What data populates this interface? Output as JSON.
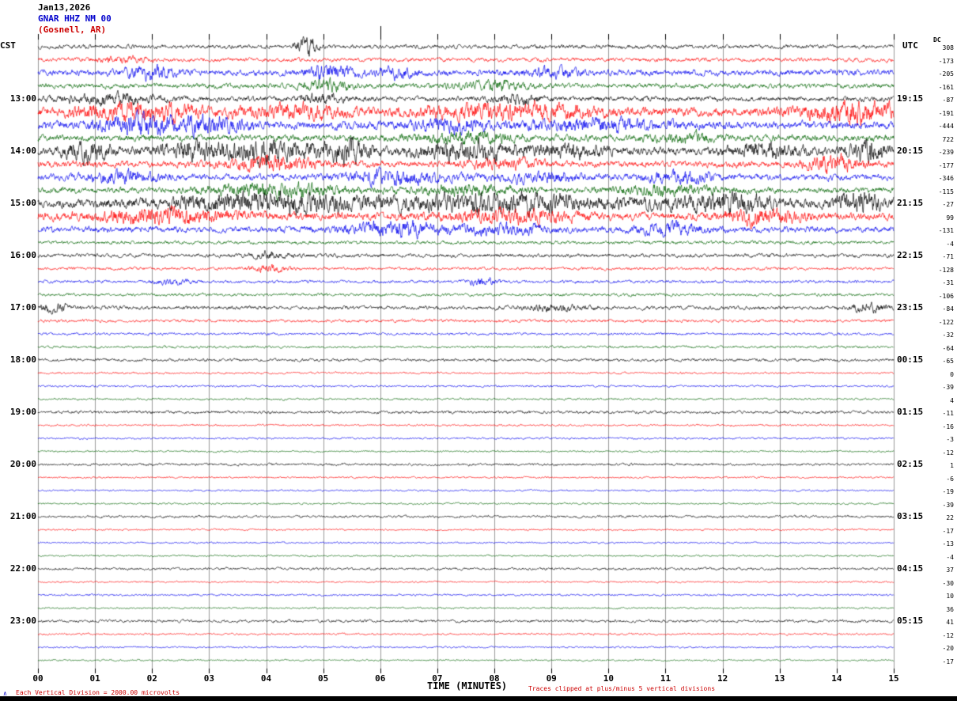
{
  "header": {
    "date": "Jan13,2026",
    "station": "GNAR HHZ NM 00",
    "location": "(Gosnell, AR)"
  },
  "axis": {
    "left_tz": "CST",
    "right_tz": "UTC",
    "dc_header": "DC",
    "x_label": "TIME (MINUTES)",
    "x_ticks": [
      "00",
      "01",
      "02",
      "03",
      "04",
      "05",
      "06",
      "07",
      "08",
      "09",
      "10",
      "11",
      "12",
      "13",
      "14",
      "15"
    ],
    "footer_left": "Each Vertical Division = 2000.00 microvolts",
    "footer_right": "Traces clipped at plus/minus 5 vertical divisions",
    "corner_mark": "∧",
    "top_marker_minute": 6
  },
  "chart_data": {
    "type": "line",
    "title": "GNAR HHZ NM 00 (Gosnell, AR) helicorder seismogram Jan13,2026",
    "x_range_minutes": [
      0,
      15
    ],
    "minutes_per_row": 15,
    "vertical_division_microvolts": 2000.0,
    "clip_divisions": 5,
    "colors": {
      "black": "#000000",
      "red": "#ff0000",
      "blue": "#0000ee",
      "green": "#006400"
    },
    "row_fields": [
      "cst",
      "utc",
      "dc",
      "color",
      "amp",
      "bursts"
    ],
    "rows": [
      [
        "",
        "",
        308,
        "black",
        1.6,
        [
          [
            0.315,
            0.008,
            5.0
          ]
        ]
      ],
      [
        "",
        "",
        -173,
        "red",
        1.6,
        [
          [
            0.1,
            0.02,
            1.2
          ]
        ]
      ],
      [
        "",
        "",
        -205,
        "blue",
        2.4,
        [
          [
            0.13,
            0.02,
            1.8
          ],
          [
            0.34,
            0.02,
            2.0
          ],
          [
            0.42,
            0.015,
            1.4
          ],
          [
            0.6,
            0.02,
            1.3
          ]
        ]
      ],
      [
        "",
        "",
        -161,
        "green",
        2.0,
        [
          [
            0.34,
            0.02,
            1.8
          ],
          [
            0.53,
            0.03,
            1.4
          ]
        ]
      ],
      [
        "13:00",
        "19:15",
        -87,
        "black",
        2.0,
        [
          [
            0.08,
            0.04,
            1.6
          ],
          [
            0.33,
            0.02,
            1.4
          ],
          [
            0.56,
            0.02,
            1.6
          ]
        ]
      ],
      [
        "",
        "",
        -191,
        "red",
        3.4,
        [
          [
            0.12,
            0.05,
            1.6
          ],
          [
            0.3,
            0.04,
            1.2
          ],
          [
            0.55,
            0.07,
            1.4
          ],
          [
            0.95,
            0.04,
            2.0
          ]
        ]
      ],
      [
        "",
        "",
        -444,
        "blue",
        3.2,
        [
          [
            0.12,
            0.03,
            1.8
          ],
          [
            0.2,
            0.03,
            1.6
          ],
          [
            0.48,
            0.03,
            1.2
          ],
          [
            0.65,
            0.05,
            1.2
          ]
        ]
      ],
      [
        "",
        "",
        722,
        "green",
        2.6,
        [
          [
            0.5,
            0.04,
            1.3
          ],
          [
            0.75,
            0.03,
            1.1
          ]
        ]
      ],
      [
        "14:00",
        "20:15",
        -239,
        "black",
        3.0,
        [
          [
            0.06,
            0.02,
            2.2
          ],
          [
            0.18,
            0.03,
            2.0
          ],
          [
            0.27,
            0.035,
            2.4
          ],
          [
            0.36,
            0.02,
            2.6
          ],
          [
            0.5,
            0.04,
            2.0
          ],
          [
            0.62,
            0.03,
            1.4
          ],
          [
            0.85,
            0.03,
            1.4
          ],
          [
            0.97,
            0.015,
            2.4
          ]
        ]
      ],
      [
        "",
        "",
        -177,
        "red",
        2.5,
        [
          [
            0.27,
            0.04,
            1.6
          ],
          [
            0.55,
            0.03,
            1.2
          ],
          [
            0.93,
            0.02,
            2.4
          ]
        ]
      ],
      [
        "",
        "",
        -346,
        "blue",
        2.5,
        [
          [
            0.1,
            0.03,
            1.6
          ],
          [
            0.42,
            0.04,
            1.8
          ],
          [
            0.58,
            0.03,
            1.3
          ],
          [
            0.75,
            0.03,
            1.3
          ]
        ]
      ],
      [
        "",
        "",
        -115,
        "green",
        2.4,
        [
          [
            0.28,
            0.05,
            2.0
          ],
          [
            0.5,
            0.04,
            1.2
          ],
          [
            0.73,
            0.04,
            1.3
          ]
        ]
      ],
      [
        "15:00",
        "21:15",
        -27,
        "black",
        3.4,
        [
          [
            0.27,
            0.08,
            2.0
          ],
          [
            0.55,
            0.1,
            1.6
          ],
          [
            0.8,
            0.04,
            1.6
          ],
          [
            0.96,
            0.02,
            2.0
          ]
        ]
      ],
      [
        "",
        "",
        99,
        "red",
        3.0,
        [
          [
            0.15,
            0.06,
            1.6
          ],
          [
            0.55,
            0.05,
            1.4
          ],
          [
            0.85,
            0.03,
            1.6
          ]
        ]
      ],
      [
        "",
        "",
        -131,
        "blue",
        2.4,
        [
          [
            0.42,
            0.04,
            2.2
          ],
          [
            0.55,
            0.03,
            1.6
          ],
          [
            0.74,
            0.03,
            1.4
          ]
        ]
      ],
      [
        "",
        "",
        -4,
        "green",
        1.4,
        []
      ],
      [
        "16:00",
        "22:15",
        -71,
        "black",
        1.5,
        [
          [
            0.27,
            0.015,
            1.6
          ]
        ]
      ],
      [
        "",
        "",
        -128,
        "red",
        1.2,
        [
          [
            0.27,
            0.015,
            2.2
          ]
        ]
      ],
      [
        "",
        "",
        -31,
        "blue",
        1.2,
        [
          [
            0.155,
            0.015,
            1.6
          ],
          [
            0.52,
            0.012,
            2.4
          ]
        ]
      ],
      [
        "",
        "",
        -106,
        "green",
        1.2,
        []
      ],
      [
        "17:00",
        "23:15",
        -84,
        "black",
        1.5,
        [
          [
            0.02,
            0.015,
            1.8
          ],
          [
            0.6,
            0.025,
            1.4
          ],
          [
            0.97,
            0.015,
            2.2
          ]
        ]
      ],
      [
        "",
        "",
        -122,
        "red",
        1.2,
        []
      ],
      [
        "",
        "",
        -32,
        "blue",
        1.0,
        []
      ],
      [
        "",
        "",
        -64,
        "green",
        1.0,
        []
      ],
      [
        "18:00",
        "00:15",
        -65,
        "black",
        1.2,
        []
      ],
      [
        "",
        "",
        0,
        "red",
        0.8,
        []
      ],
      [
        "",
        "",
        -39,
        "blue",
        0.8,
        []
      ],
      [
        "",
        "",
        4,
        "green",
        0.8,
        []
      ],
      [
        "19:00",
        "01:15",
        -11,
        "black",
        1.2,
        []
      ],
      [
        "",
        "",
        -16,
        "red",
        0.8,
        []
      ],
      [
        "",
        "",
        -3,
        "blue",
        0.8,
        []
      ],
      [
        "",
        "",
        -12,
        "green",
        0.7,
        []
      ],
      [
        "20:00",
        "02:15",
        1,
        "black",
        1.0,
        []
      ],
      [
        "",
        "",
        -6,
        "red",
        0.7,
        []
      ],
      [
        "",
        "",
        -19,
        "blue",
        0.7,
        []
      ],
      [
        "",
        "",
        -39,
        "green",
        0.7,
        []
      ],
      [
        "21:00",
        "03:15",
        22,
        "black",
        1.0,
        []
      ],
      [
        "",
        "",
        -17,
        "red",
        0.7,
        []
      ],
      [
        "",
        "",
        -13,
        "blue",
        0.7,
        []
      ],
      [
        "",
        "",
        -4,
        "green",
        0.7,
        []
      ],
      [
        "22:00",
        "04:15",
        37,
        "black",
        1.0,
        []
      ],
      [
        "",
        "",
        -30,
        "red",
        0.7,
        []
      ],
      [
        "",
        "",
        10,
        "blue",
        0.8,
        []
      ],
      [
        "",
        "",
        36,
        "green",
        0.7,
        []
      ],
      [
        "23:00",
        "05:15",
        41,
        "black",
        1.1,
        []
      ],
      [
        "",
        "",
        -12,
        "red",
        0.8,
        []
      ],
      [
        "",
        "",
        -20,
        "blue",
        0.7,
        []
      ],
      [
        "",
        "",
        -17,
        "green",
        0.7,
        []
      ]
    ]
  }
}
